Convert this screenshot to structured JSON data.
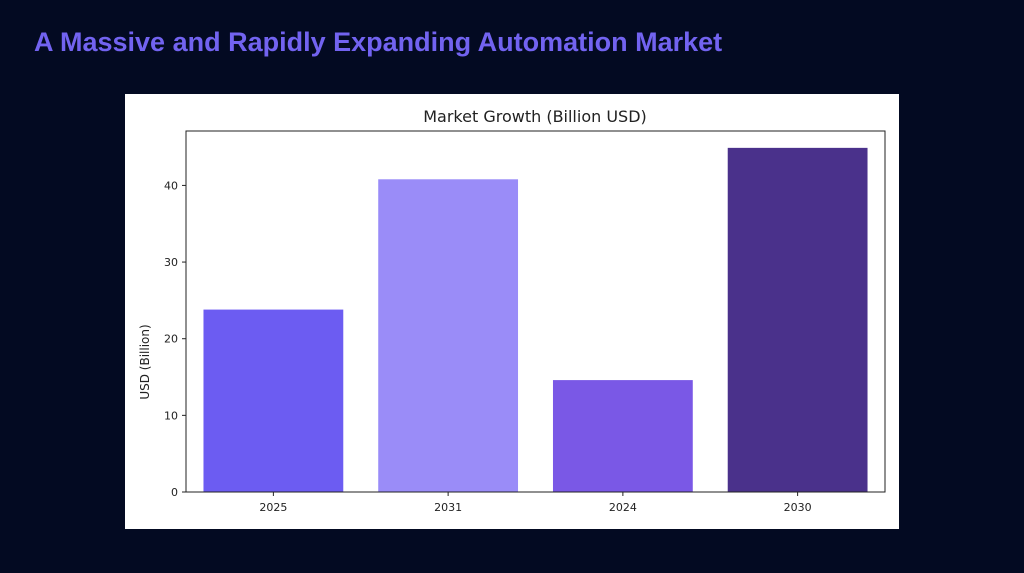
{
  "slide": {
    "title": "A Massive and Rapidly Expanding Automation Market"
  },
  "colors": {
    "background": "#030a22",
    "title": "#7263f0",
    "axis": "#222222"
  },
  "chart_data": {
    "type": "bar",
    "title": "Market Growth (Billion USD)",
    "xlabel": "",
    "ylabel": "USD (Billion)",
    "categories": [
      "2025",
      "2031",
      "2024",
      "2030"
    ],
    "values": [
      23.8,
      40.8,
      14.6,
      44.9
    ],
    "bar_colors": [
      "#6c5cf2",
      "#9a8cf8",
      "#7a58e6",
      "#4a318b"
    ],
    "ylim": [
      0,
      47.1
    ],
    "yticks": [
      0,
      10,
      20,
      30,
      40
    ],
    "grid": false,
    "legend": null
  }
}
